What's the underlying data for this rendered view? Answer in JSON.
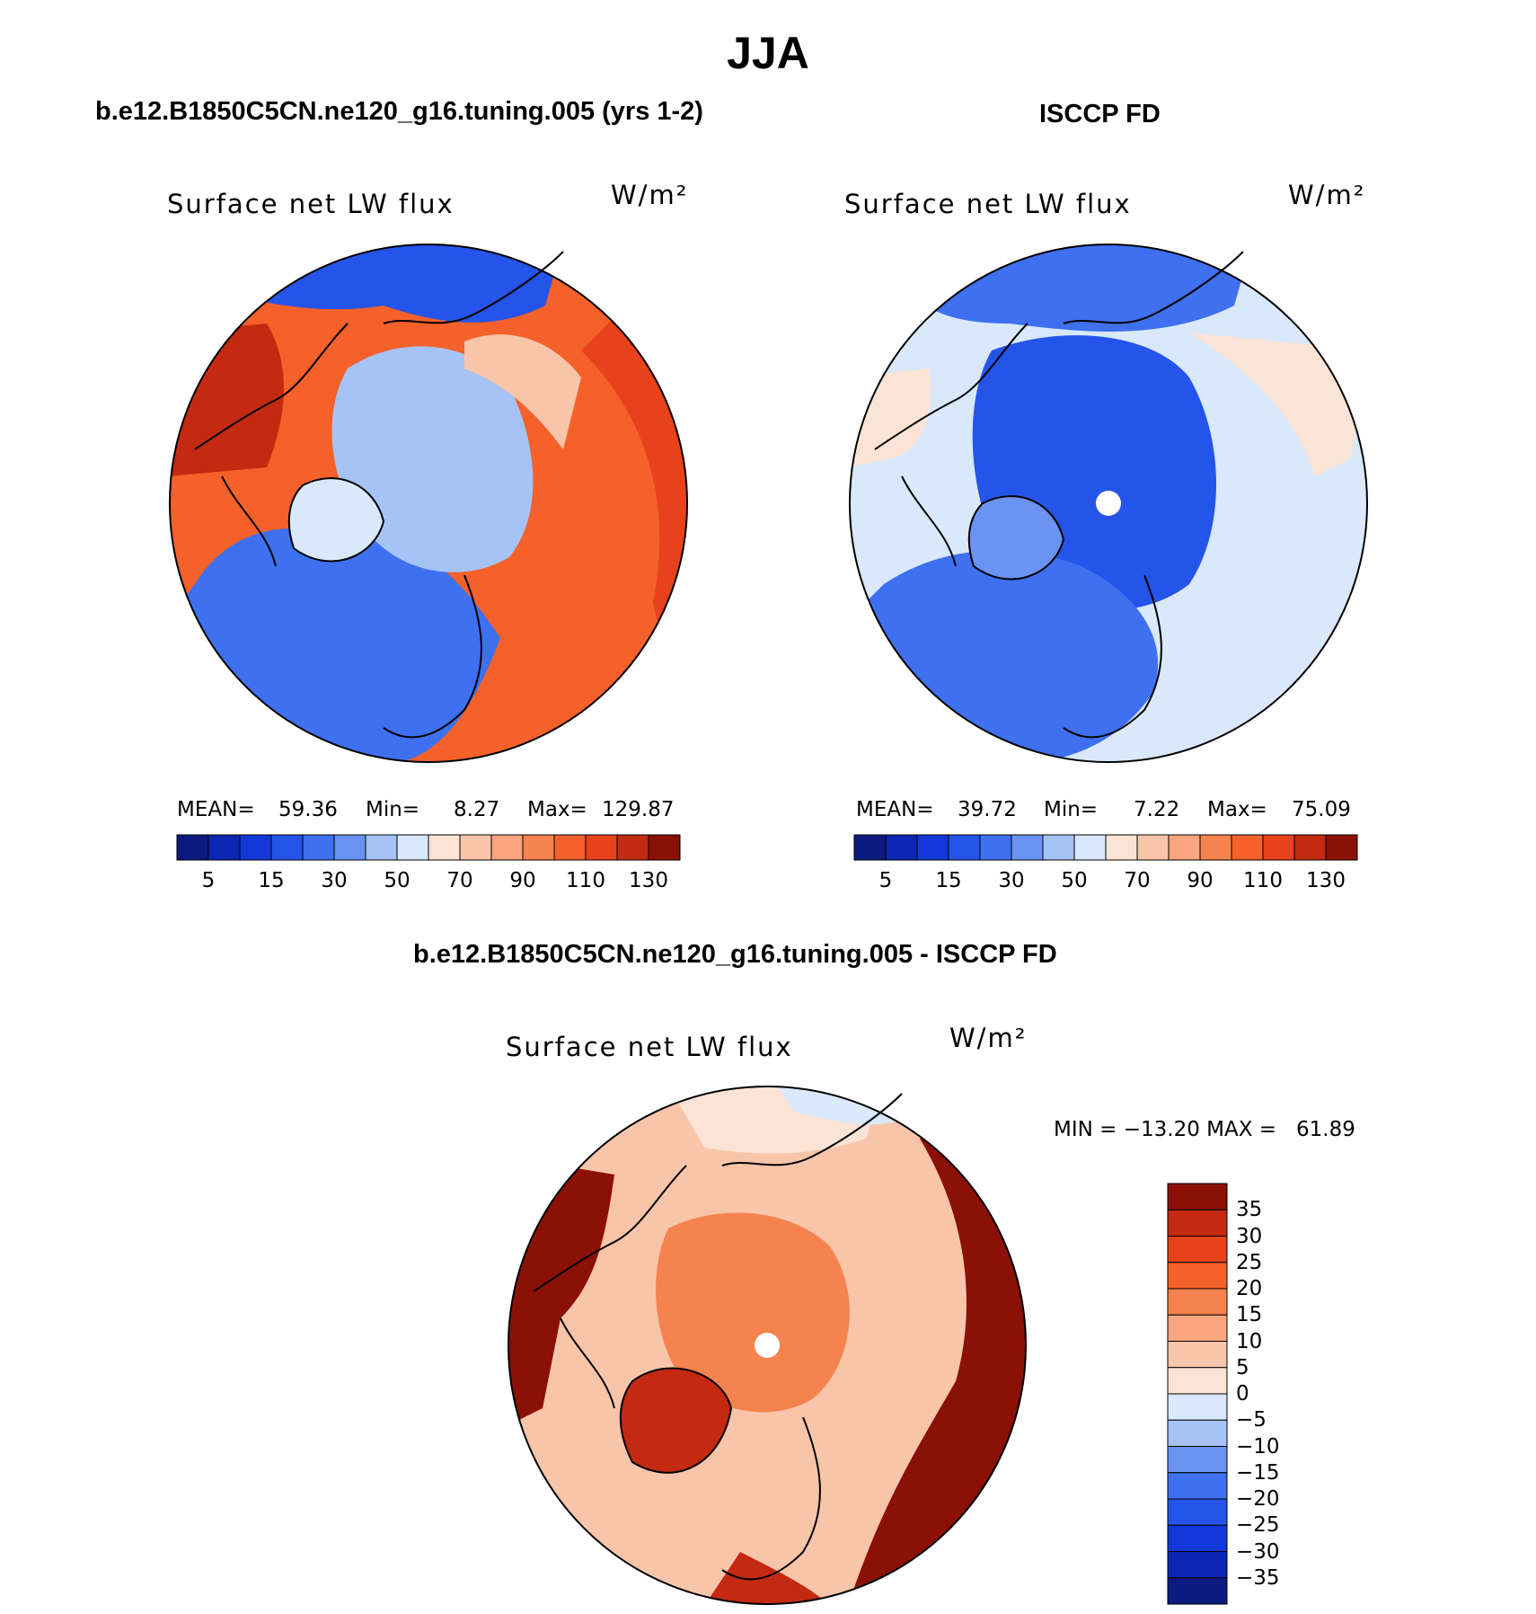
{
  "header": {
    "title": "JJA",
    "model_case": "b.e12.B1850C5CN.ne120_g16.tuning.005 (yrs 1-2)",
    "obs_case": "ISCCP FD",
    "diff_case": "b.e12.B1850C5CN.ne120_g16.tuning.005 - ISCCP FD"
  },
  "panels": {
    "model": {
      "variable": "Surface net LW flux",
      "units": "W/m²",
      "stats": {
        "mean_label": "MEAN=",
        "mean": "59.36",
        "min_label": "Min=",
        "min": "8.27",
        "max_label": "Max=",
        "max": "129.87"
      }
    },
    "obs": {
      "variable": "Surface net LW flux",
      "units": "W/m²",
      "stats": {
        "mean_label": "MEAN=",
        "mean": "39.72",
        "min_label": "Min=",
        "min": "7.22",
        "max_label": "Max=",
        "max": "75.09"
      }
    },
    "diff": {
      "variable": "Surface net LW flux",
      "units": "W/m²",
      "stats_text": "MIN = −13.20 MAX =   61.89"
    }
  },
  "colorbars": {
    "abs_colors": [
      "#0d1a80",
      "#0a26b3",
      "#1238d9",
      "#2554ea",
      "#3e70f0",
      "#6b93f3",
      "#a6c3f6",
      "#d9e8fa",
      "#fbe4d5",
      "#f9c5aa",
      "#f8a580",
      "#f6834f",
      "#f4612a",
      "#e8421c",
      "#c32a11",
      "#8b1005"
    ],
    "abs_ticks": [
      "5",
      "15",
      "30",
      "50",
      "70",
      "90",
      "110",
      "130"
    ],
    "diff_colors": [
      "#0d1a80",
      "#0a26b3",
      "#1238d9",
      "#2554ea",
      "#3e70f0",
      "#6b93f3",
      "#a6c3f6",
      "#d9e8fa",
      "#fbe4d5",
      "#f9c5aa",
      "#f8a580",
      "#f6834f",
      "#f4612a",
      "#e8421c",
      "#c32a11",
      "#8b1005"
    ],
    "diff_ticks": [
      "35",
      "30",
      "25",
      "20",
      "15",
      "10",
      "5",
      "0",
      "−5",
      "−10",
      "−15",
      "−20",
      "−25",
      "−30",
      "−35"
    ]
  },
  "maps": {
    "model_fill": "#f4612a",
    "obs_fill": "#d9e8fa",
    "diff_fill": "#f9c5aa",
    "model_arctic": "#a6c3f6",
    "model_atlantic": "#3e70f0",
    "obs_arctic": "#2554ea",
    "diff_arctic": "#f6834f",
    "diff_outer": "#8b1005"
  }
}
